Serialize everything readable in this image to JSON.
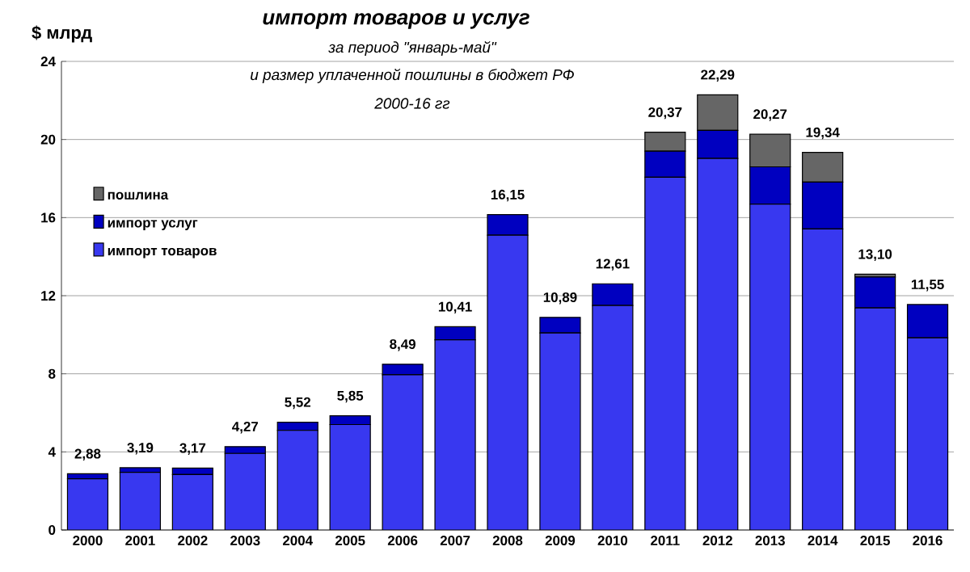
{
  "chart_data": {
    "type": "bar",
    "stacked": true,
    "title": "импорт товаров и услуг",
    "subtitle": "за период \"январь-май\"",
    "annotations": [
      "и размер уплаченной пошлины в бюджет РФ",
      "2000-16 гг"
    ],
    "ylabel": "$ млрд",
    "categories": [
      "2000",
      "2001",
      "2002",
      "2003",
      "2004",
      "2005",
      "2006",
      "2007",
      "2008",
      "2009",
      "2010",
      "2011",
      "2012",
      "2013",
      "2014",
      "2015",
      "2016"
    ],
    "series": [
      {
        "name": "импорт товаров",
        "color": "#3838f0",
        "values": [
          2.62,
          2.95,
          2.84,
          3.92,
          5.1,
          5.4,
          7.95,
          9.74,
          15.1,
          10.09,
          11.5,
          18.07,
          19.03,
          16.69,
          15.42,
          11.37,
          9.84
        ]
      },
      {
        "name": "импорт услуг",
        "color": "#0000c0",
        "values": [
          0.26,
          0.24,
          0.33,
          0.35,
          0.42,
          0.45,
          0.54,
          0.67,
          1.05,
          0.8,
          1.11,
          1.33,
          1.44,
          1.91,
          2.4,
          1.59,
          1.71
        ]
      },
      {
        "name": "пошлина",
        "color": "#666666",
        "values": [
          null,
          null,
          null,
          null,
          null,
          null,
          null,
          null,
          null,
          null,
          null,
          0.97,
          1.82,
          1.67,
          1.52,
          0.14,
          null
        ]
      }
    ],
    "totals": [
      "2,88",
      "3,19",
      "3,17",
      "4,27",
      "5,52",
      "5,85",
      "8,49",
      "10,41",
      "16,15",
      "10,89",
      "12,61",
      "20,37",
      "22,29",
      "20,27",
      "19,34",
      "13,10",
      "11,55"
    ],
    "ylim": [
      0,
      24
    ],
    "yticks": [
      0,
      4,
      8,
      12,
      16,
      20,
      24
    ],
    "grid": "y",
    "legend": "top left"
  }
}
